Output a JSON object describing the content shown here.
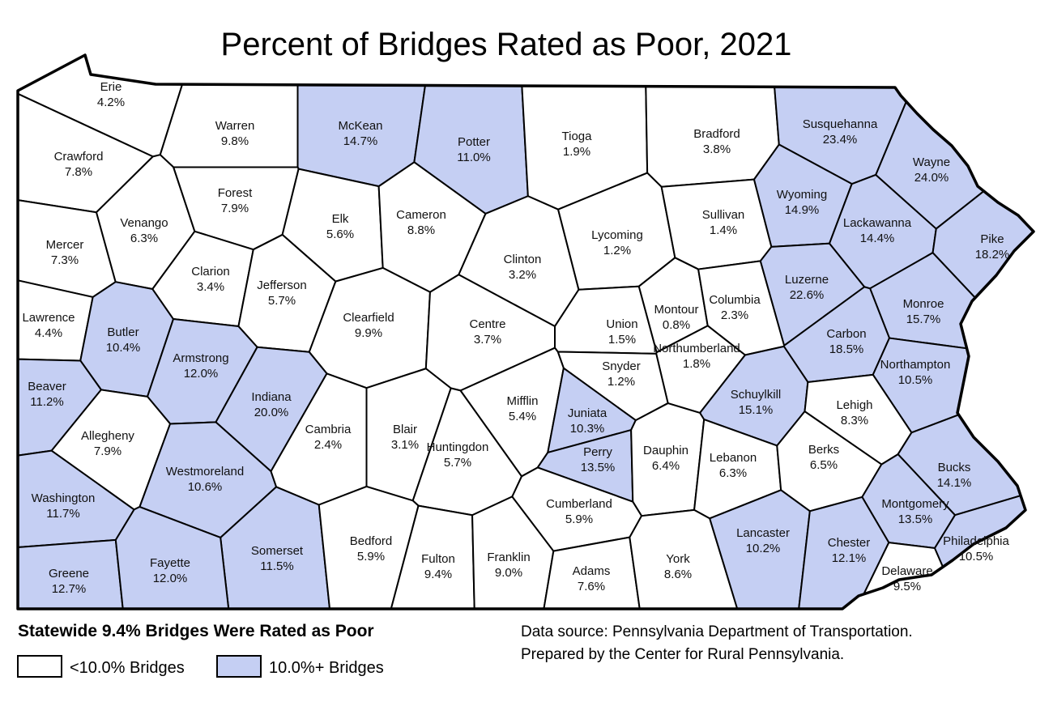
{
  "title": "Percent of Bridges Rated as Poor, 2021",
  "counties": [
    {
      "name": "Erie",
      "percent": "4.2%",
      "color": "#ffffff"
    },
    {
      "name": "Crawford",
      "percent": "7.8%",
      "color": "#ffffff"
    },
    {
      "name": "Warren",
      "percent": "9.8%",
      "color": "#ffffff"
    },
    {
      "name": "McKean",
      "percent": "14.7%",
      "color": "#c5cff3"
    },
    {
      "name": "Potter",
      "percent": "11.0%",
      "color": "#c5cff3"
    },
    {
      "name": "Tioga",
      "percent": "1.9%",
      "color": "#ffffff"
    },
    {
      "name": "Bradford",
      "percent": "3.8%",
      "color": "#ffffff"
    },
    {
      "name": "Susquehanna",
      "percent": "23.4%",
      "color": "#c5cff3"
    },
    {
      "name": "Wayne",
      "percent": "24.0%",
      "color": "#c5cff3"
    },
    {
      "name": "Mercer",
      "percent": "7.3%",
      "color": "#ffffff"
    },
    {
      "name": "Venango",
      "percent": "6.3%",
      "color": "#ffffff"
    },
    {
      "name": "Forest",
      "percent": "7.9%",
      "color": "#ffffff"
    },
    {
      "name": "Elk",
      "percent": "5.6%",
      "color": "#ffffff"
    },
    {
      "name": "Cameron",
      "percent": "8.8%",
      "color": "#ffffff"
    },
    {
      "name": "Clinton",
      "percent": "3.2%",
      "color": "#ffffff"
    },
    {
      "name": "Lycoming",
      "percent": "1.2%",
      "color": "#ffffff"
    },
    {
      "name": "Sullivan",
      "percent": "1.4%",
      "color": "#ffffff"
    },
    {
      "name": "Wyoming",
      "percent": "14.9%",
      "color": "#c5cff3"
    },
    {
      "name": "Lackawanna",
      "percent": "14.4%",
      "color": "#c5cff3"
    },
    {
      "name": "Pike",
      "percent": "18.2%",
      "color": "#c5cff3"
    },
    {
      "name": "Lawrence",
      "percent": "4.4%",
      "color": "#ffffff"
    },
    {
      "name": "Butler",
      "percent": "10.4%",
      "color": "#c5cff3"
    },
    {
      "name": "Clarion",
      "percent": "3.4%",
      "color": "#ffffff"
    },
    {
      "name": "Jefferson",
      "percent": "5.7%",
      "color": "#ffffff"
    },
    {
      "name": "Clearfield",
      "percent": "9.9%",
      "color": "#ffffff"
    },
    {
      "name": "Centre",
      "percent": "3.7%",
      "color": "#ffffff"
    },
    {
      "name": "Union",
      "percent": "1.5%",
      "color": "#ffffff"
    },
    {
      "name": "Montour",
      "percent": "0.8%",
      "color": "#ffffff"
    },
    {
      "name": "Columbia",
      "percent": "2.3%",
      "color": "#ffffff"
    },
    {
      "name": "Luzerne",
      "percent": "22.6%",
      "color": "#c5cff3"
    },
    {
      "name": "Monroe",
      "percent": "15.7%",
      "color": "#c5cff3"
    },
    {
      "name": "Carbon",
      "percent": "18.5%",
      "color": "#c5cff3"
    },
    {
      "name": "Beaver",
      "percent": "11.2%",
      "color": "#c5cff3"
    },
    {
      "name": "Armstrong",
      "percent": "12.0%",
      "color": "#c5cff3"
    },
    {
      "name": "Indiana",
      "percent": "20.0%",
      "color": "#c5cff3"
    },
    {
      "name": "Northumberland",
      "percent": "1.8%",
      "color": "#ffffff"
    },
    {
      "name": "Snyder",
      "percent": "1.2%",
      "color": "#ffffff"
    },
    {
      "name": "Schuylkill",
      "percent": "15.1%",
      "color": "#c5cff3"
    },
    {
      "name": "Northampton",
      "percent": "10.5%",
      "color": "#c5cff3"
    },
    {
      "name": "Lehigh",
      "percent": "8.3%",
      "color": "#ffffff"
    },
    {
      "name": "Allegheny",
      "percent": "7.9%",
      "color": "#ffffff"
    },
    {
      "name": "Westmoreland",
      "percent": "10.6%",
      "color": "#c5cff3"
    },
    {
      "name": "Cambria",
      "percent": "2.4%",
      "color": "#ffffff"
    },
    {
      "name": "Blair",
      "percent": "3.1%",
      "color": "#ffffff"
    },
    {
      "name": "Huntingdon",
      "percent": "5.7%",
      "color": "#ffffff"
    },
    {
      "name": "Mifflin",
      "percent": "5.4%",
      "color": "#ffffff"
    },
    {
      "name": "Juniata",
      "percent": "10.3%",
      "color": "#c5cff3"
    },
    {
      "name": "Perry",
      "percent": "13.5%",
      "color": "#c5cff3"
    },
    {
      "name": "Dauphin",
      "percent": "6.4%",
      "color": "#ffffff"
    },
    {
      "name": "Lebanon",
      "percent": "6.3%",
      "color": "#ffffff"
    },
    {
      "name": "Berks",
      "percent": "6.5%",
      "color": "#ffffff"
    },
    {
      "name": "Bucks",
      "percent": "14.1%",
      "color": "#c5cff3"
    },
    {
      "name": "Washington",
      "percent": "11.7%",
      "color": "#c5cff3"
    },
    {
      "name": "Montgomery",
      "percent": "13.5%",
      "color": "#c5cff3"
    },
    {
      "name": "Somerset",
      "percent": "11.5%",
      "color": "#c5cff3"
    },
    {
      "name": "Bedford",
      "percent": "5.9%",
      "color": "#ffffff"
    },
    {
      "name": "Fulton",
      "percent": "9.4%",
      "color": "#ffffff"
    },
    {
      "name": "Franklin",
      "percent": "9.0%",
      "color": "#ffffff"
    },
    {
      "name": "Cumberland",
      "percent": "5.9%",
      "color": "#ffffff"
    },
    {
      "name": "Adams",
      "percent": "7.6%",
      "color": "#ffffff"
    },
    {
      "name": "York",
      "percent": "8.6%",
      "color": "#ffffff"
    },
    {
      "name": "Lancaster",
      "percent": "10.2%",
      "color": "#c5cff3"
    },
    {
      "name": "Chester",
      "percent": "12.1%",
      "color": "#c5cff3"
    },
    {
      "name": "Delaware",
      "percent": "9.5%",
      "color": "#ffffff"
    },
    {
      "name": "Philadelphia",
      "percent": "10.5%",
      "color": "#c5cff3"
    },
    {
      "name": "Greene",
      "percent": "12.7%",
      "color": "#c5cff3"
    },
    {
      "name": "Fayette",
      "percent": "12.0%",
      "color": "#c5cff3"
    }
  ],
  "summary": "Statewide 9.4% Bridges Were Rated as Poor",
  "legend": [
    {
      "label": "<10.0% Bridges",
      "color": "#ffffff"
    },
    {
      "label": "10.0%+ Bridges",
      "color": "#c5cff3"
    }
  ],
  "source": [
    "Data source: Pennsylvania Department of Transportation.",
    "Prepared by the Center for Rural Pennsylvania."
  ]
}
